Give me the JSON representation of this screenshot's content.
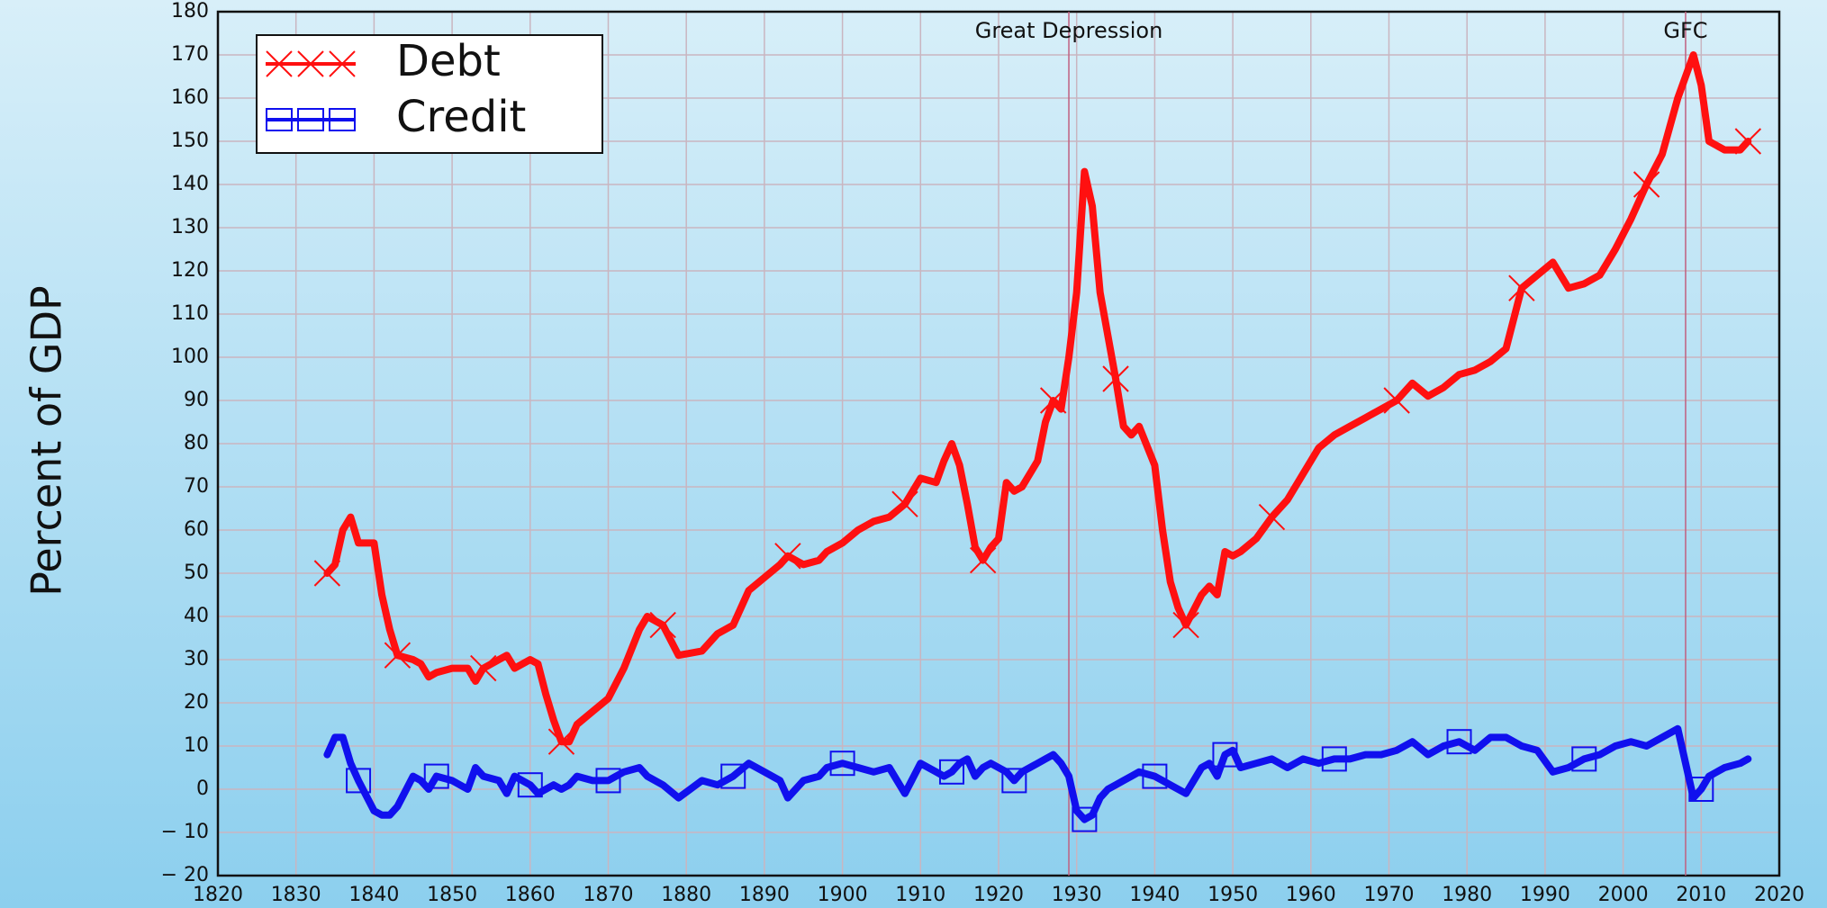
{
  "chart_data": {
    "type": "line",
    "ylabel": "Percent of GDP",
    "x": [
      1834,
      1835,
      1836,
      1837,
      1838,
      1840,
      1841,
      1842,
      1843,
      1845,
      1846,
      1847,
      1848,
      1850,
      1852,
      1853,
      1854,
      1856,
      1857,
      1858,
      1860,
      1861,
      1862,
      1863,
      1864,
      1865,
      1866,
      1868,
      1870,
      1872,
      1874,
      1875,
      1877,
      1879,
      1882,
      1884,
      1886,
      1888,
      1890,
      1892,
      1893,
      1895,
      1897,
      1898,
      1900,
      1902,
      1904,
      1906,
      1908,
      1910,
      1912,
      1913,
      1914,
      1915,
      1916,
      1917,
      1918,
      1919,
      1920,
      1921,
      1922,
      1923,
      1925,
      1926,
      1927,
      1928,
      1929,
      1930,
      1931,
      1932,
      1933,
      1934,
      1935,
      1936,
      1937,
      1938,
      1940,
      1941,
      1942,
      1943,
      1944,
      1946,
      1947,
      1948,
      1949,
      1950,
      1951,
      1953,
      1955,
      1957,
      1959,
      1961,
      1963,
      1965,
      1967,
      1969,
      1971,
      1973,
      1975,
      1977,
      1979,
      1981,
      1983,
      1985,
      1987,
      1989,
      1991,
      1993,
      1995,
      1997,
      1999,
      2001,
      2003,
      2005,
      2007,
      2009,
      2010,
      2011,
      2013,
      2015,
      2016
    ],
    "series": [
      {
        "name": "Debt",
        "color": "#ff1010",
        "marker": "x",
        "values": [
          50,
          52,
          60,
          63,
          57,
          57,
          45,
          37,
          31,
          30,
          29,
          26,
          27,
          28,
          28,
          25,
          28,
          30,
          31,
          28,
          30,
          29,
          22,
          16,
          11,
          11,
          15,
          18,
          21,
          28,
          37,
          40,
          38,
          31,
          32,
          36,
          38,
          46,
          49,
          52,
          54,
          52,
          53,
          55,
          57,
          60,
          62,
          63,
          66,
          72,
          71,
          76,
          80,
          75,
          66,
          56,
          53,
          56,
          58,
          71,
          69,
          70,
          76,
          85,
          90,
          88,
          100,
          115,
          143,
          135,
          115,
          105,
          95,
          84,
          82,
          84,
          75,
          60,
          48,
          42,
          38,
          45,
          47,
          45,
          55,
          54,
          55,
          58,
          63,
          67,
          73,
          79,
          82,
          84,
          86,
          88,
          90,
          94,
          91,
          93,
          96,
          97,
          99,
          102,
          116,
          119,
          122,
          116,
          117,
          119,
          125,
          132,
          140,
          147,
          160,
          170,
          163,
          150,
          148,
          148,
          150
        ]
      },
      {
        "name": "Credit",
        "color": "#1010ee",
        "marker": "square",
        "values": [
          8,
          12,
          12,
          6,
          2,
          -5,
          -6,
          -6,
          -4,
          3,
          2,
          0,
          3,
          2,
          0,
          5,
          3,
          2,
          -1,
          3,
          1,
          -1,
          0,
          1,
          0,
          1,
          3,
          2,
          2,
          4,
          5,
          3,
          1,
          -2,
          2,
          1,
          3,
          6,
          4,
          2,
          -2,
          2,
          3,
          5,
          6,
          5,
          4,
          5,
          -1,
          6,
          4,
          3,
          4,
          6,
          7,
          3,
          5,
          6,
          5,
          4,
          2,
          4,
          6,
          7,
          8,
          6,
          3,
          -5,
          -7,
          -6,
          -2,
          0,
          1,
          2,
          3,
          4,
          3,
          2,
          1,
          0,
          -1,
          5,
          6,
          3,
          8,
          9,
          5,
          6,
          7,
          5,
          7,
          6,
          7,
          7,
          8,
          8,
          9,
          11,
          8,
          10,
          11,
          9,
          12,
          12,
          10,
          9,
          4,
          5,
          7,
          8,
          10,
          11,
          10,
          12,
          14,
          -2,
          0,
          3,
          5,
          6,
          7
        ]
      }
    ],
    "annotations": [
      {
        "text": "Great Depression",
        "x": 1929
      },
      {
        "text": "GFC",
        "x": 2008
      }
    ],
    "xlim": [
      1820,
      2020
    ],
    "xticks": [
      1820,
      1830,
      1840,
      1850,
      1860,
      1870,
      1880,
      1890,
      1900,
      1910,
      1920,
      1930,
      1940,
      1950,
      1960,
      1970,
      1980,
      1990,
      2000,
      2010,
      2020
    ],
    "ylim": [
      -20,
      180
    ],
    "yticks": [
      {
        "value": -20,
        "label": "− 20"
      },
      {
        "value": -10,
        "label": "− 10"
      },
      0,
      10,
      20,
      30,
      40,
      50,
      60,
      70,
      80,
      90,
      100,
      110,
      120,
      130,
      140,
      150,
      160,
      170,
      180
    ],
    "grid": true,
    "legend": "upper left"
  }
}
